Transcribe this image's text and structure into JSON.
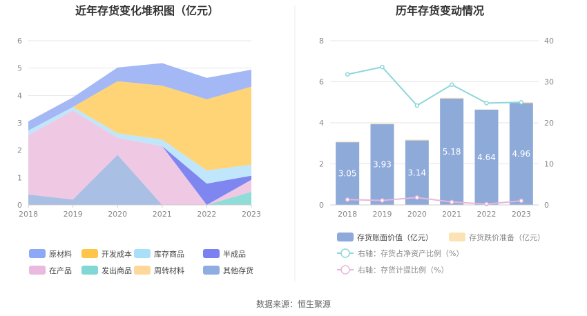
{
  "chart_data": [
    {
      "type": "area",
      "title": "近年存货变化堆积图（亿元）",
      "x": [
        "2018",
        "2019",
        "2020",
        "2021",
        "2022",
        "2023"
      ],
      "ylim": [
        0,
        6
      ],
      "yticks": [
        "0",
        "1",
        "2",
        "3",
        "4",
        "5",
        "6"
      ],
      "stacked": true,
      "grid": true,
      "legend_position": "bottom",
      "series": [
        {
          "name": "其他存货",
          "color": "#a9bfe4",
          "values": [
            0.38,
            0.2,
            1.83,
            0.0,
            0.0,
            0.0
          ]
        },
        {
          "name": "发出商品",
          "color": "#8fdcd9",
          "values": [
            0.0,
            0.0,
            0.0,
            0.0,
            0.0,
            0.48
          ]
        },
        {
          "name": "在产品",
          "color": "#efc8e4",
          "values": [
            2.17,
            3.25,
            0.62,
            2.15,
            0.0,
            0.44
          ]
        },
        {
          "name": "半成品",
          "color": "#7f86f0",
          "values": [
            0.0,
            0.0,
            0.0,
            0.0,
            0.78,
            0.15
          ]
        },
        {
          "name": "周转材料",
          "color": "#ffe1a6",
          "values": [
            0.0,
            0.0,
            0.0,
            0.0,
            0.0,
            0.0
          ]
        },
        {
          "name": "库存商品",
          "color": "#bfe6fa",
          "values": [
            0.17,
            0.13,
            0.17,
            0.24,
            0.48,
            0.4
          ]
        },
        {
          "name": "开发成本",
          "color": "#ffd477",
          "values": [
            0.0,
            0.0,
            1.9,
            1.97,
            2.6,
            2.85
          ]
        },
        {
          "name": "原材料",
          "color": "#a3b8f5",
          "values": [
            0.33,
            0.35,
            0.5,
            0.82,
            0.78,
            0.62
          ]
        }
      ],
      "legend": [
        {
          "name": "原材料",
          "color": "#8da8f6"
        },
        {
          "name": "开发成本",
          "color": "#fec54a"
        },
        {
          "name": "库存商品",
          "color": "#a8e0fa"
        },
        {
          "name": "半成品",
          "color": "#7b80f2"
        },
        {
          "name": "在产品",
          "color": "#eab9df"
        },
        {
          "name": "发出商品",
          "color": "#80d8d6"
        },
        {
          "name": "周转材料",
          "color": "#fdd89a"
        },
        {
          "name": "其他存货",
          "color": "#8faee0"
        }
      ]
    },
    {
      "type": "bar",
      "title": "历年存货变动情况",
      "categories": [
        "2018",
        "2019",
        "2020",
        "2021",
        "2022",
        "2023"
      ],
      "ylim": [
        0,
        8
      ],
      "yticks": [
        "0",
        "2",
        "4",
        "6",
        "8"
      ],
      "y2lim": [
        0,
        40
      ],
      "y2ticks": [
        "0",
        "10",
        "20",
        "30",
        "40"
      ],
      "grid": true,
      "legend_position": "bottom",
      "bars": [
        {
          "name": "存货账面价值（亿元）",
          "color": "#8eaad9",
          "values": [
            3.05,
            3.93,
            3.14,
            5.18,
            4.64,
            4.96
          ],
          "labels": [
            "3.05",
            "3.93",
            "3.14",
            "5.18",
            "4.64",
            "4.96"
          ]
        },
        {
          "name": "存货跌价准备（亿元）",
          "color": "#fbe3b5",
          "values": [
            0.04,
            0.04,
            0.04,
            0.04,
            0.01,
            0.05
          ]
        }
      ],
      "lines": [
        {
          "name": "右轴：存货占净资产比例（%）",
          "axis": "right",
          "color": "#8cd6dc",
          "values": [
            31.8,
            33.6,
            24.2,
            29.3,
            24.8,
            25.0
          ]
        },
        {
          "name": "右轴：存货计提比例（%）",
          "axis": "right",
          "color": "#e8b6dc",
          "values": [
            1.3,
            1.1,
            1.8,
            0.7,
            0.2,
            1.0
          ]
        }
      ]
    }
  ],
  "source": "数据来源：恒生聚源"
}
